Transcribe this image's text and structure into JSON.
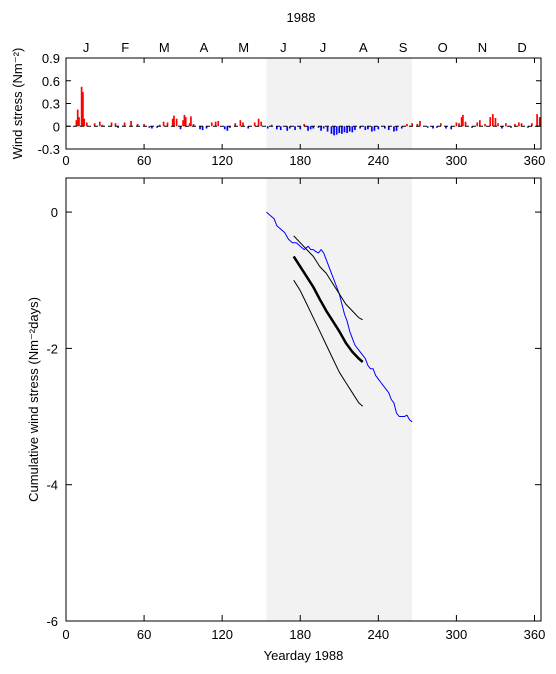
{
  "title": "1988",
  "months": [
    "J",
    "F",
    "M",
    "A",
    "M",
    "J",
    "J",
    "A",
    "S",
    "O",
    "N",
    "D"
  ],
  "chart_data": [
    {
      "type": "bar",
      "ylabel": "Wind stress (Nm⁻²)",
      "xlim": [
        0,
        365
      ],
      "ylim": [
        -0.3,
        0.9
      ],
      "xticks": [
        0,
        60,
        120,
        180,
        240,
        300,
        360
      ],
      "yticks": [
        -0.3,
        0,
        0.3,
        0.6,
        0.9
      ],
      "shaded_range": [
        154,
        266
      ],
      "positive_color": "#ff0000",
      "negative_color": "#0000ff",
      "bars": [
        [
          8,
          0.08
        ],
        [
          9,
          0.22
        ],
        [
          10,
          0.12
        ],
        [
          12,
          0.52
        ],
        [
          13,
          0.45
        ],
        [
          14,
          0.1
        ],
        [
          16,
          0.05
        ],
        [
          22,
          0.04
        ],
        [
          26,
          0.06
        ],
        [
          28,
          0.02
        ],
        [
          35,
          0.05
        ],
        [
          38,
          0.04
        ],
        [
          40,
          -0.02
        ],
        [
          45,
          0.05
        ],
        [
          50,
          0.07
        ],
        [
          55,
          0.03
        ],
        [
          60,
          0.03
        ],
        [
          64,
          -0.02
        ],
        [
          66,
          -0.03
        ],
        [
          70,
          -0.02
        ],
        [
          72,
          0.02
        ],
        [
          75,
          0.06
        ],
        [
          78,
          0.05
        ],
        [
          82,
          0.1
        ],
        [
          83,
          0.14
        ],
        [
          85,
          0.1
        ],
        [
          88,
          -0.04
        ],
        [
          90,
          0.08
        ],
        [
          91,
          0.15
        ],
        [
          92,
          0.12
        ],
        [
          95,
          0.04
        ],
        [
          96,
          0.13
        ],
        [
          98,
          0.03
        ],
        [
          103,
          -0.04
        ],
        [
          105,
          -0.05
        ],
        [
          108,
          -0.03
        ],
        [
          112,
          0.05
        ],
        [
          115,
          0.06
        ],
        [
          117,
          0.07
        ],
        [
          122,
          -0.04
        ],
        [
          124,
          -0.06
        ],
        [
          126,
          -0.02
        ],
        [
          130,
          0.04
        ],
        [
          134,
          0.08
        ],
        [
          136,
          0.05
        ],
        [
          140,
          -0.03
        ],
        [
          145,
          0.05
        ],
        [
          148,
          0.1
        ],
        [
          150,
          0.06
        ],
        [
          155,
          -0.03
        ],
        [
          158,
          0.02
        ],
        [
          162,
          -0.04
        ],
        [
          165,
          -0.05
        ],
        [
          170,
          -0.06
        ],
        [
          172,
          -0.03
        ],
        [
          176,
          -0.05
        ],
        [
          180,
          -0.04
        ],
        [
          183,
          0.03
        ],
        [
          186,
          -0.06
        ],
        [
          188,
          -0.04
        ],
        [
          190,
          -0.03
        ],
        [
          194,
          -0.02
        ],
        [
          196,
          -0.06
        ],
        [
          198,
          -0.03
        ],
        [
          201,
          -0.07
        ],
        [
          204,
          -0.1
        ],
        [
          206,
          -0.12
        ],
        [
          208,
          -0.11
        ],
        [
          210,
          -0.09
        ],
        [
          212,
          -0.1
        ],
        [
          214,
          -0.08
        ],
        [
          216,
          -0.09
        ],
        [
          218,
          -0.07
        ],
        [
          220,
          -0.08
        ],
        [
          222,
          -0.05
        ],
        [
          226,
          -0.03
        ],
        [
          230,
          -0.05
        ],
        [
          232,
          -0.04
        ],
        [
          235,
          -0.07
        ],
        [
          237,
          -0.06
        ],
        [
          240,
          -0.04
        ],
        [
          245,
          -0.03
        ],
        [
          248,
          -0.05
        ],
        [
          252,
          -0.07
        ],
        [
          254,
          -0.06
        ],
        [
          258,
          -0.03
        ],
        [
          262,
          0.03
        ],
        [
          266,
          0.04
        ],
        [
          270,
          0.03
        ],
        [
          272,
          0.07
        ],
        [
          278,
          -0.02
        ],
        [
          282,
          -0.03
        ],
        [
          285,
          -0.02
        ],
        [
          288,
          0.04
        ],
        [
          292,
          -0.03
        ],
        [
          296,
          -0.04
        ],
        [
          300,
          0.05
        ],
        [
          302,
          0.04
        ],
        [
          304,
          0.12
        ],
        [
          305,
          0.15
        ],
        [
          307,
          0.06
        ],
        [
          312,
          -0.02
        ],
        [
          316,
          0.05
        ],
        [
          318,
          0.08
        ],
        [
          322,
          0.03
        ],
        [
          326,
          0.12
        ],
        [
          328,
          0.16
        ],
        [
          330,
          0.11
        ],
        [
          332,
          0.04
        ],
        [
          335,
          -0.03
        ],
        [
          338,
          0.04
        ],
        [
          342,
          -0.02
        ],
        [
          345,
          0.03
        ],
        [
          348,
          0.05
        ],
        [
          350,
          0.04
        ],
        [
          355,
          -0.02
        ],
        [
          358,
          0.04
        ],
        [
          362,
          0.16
        ],
        [
          364,
          0.12
        ]
      ]
    },
    {
      "type": "line",
      "xlabel": "Yearday 1988",
      "ylabel": "Cumulative wind stress (Nm⁻²days)",
      "xlim": [
        0,
        365
      ],
      "ylim": [
        -6,
        0.5
      ],
      "xticks": [
        0,
        60,
        120,
        180,
        240,
        300,
        360
      ],
      "yticks": [
        0,
        -2,
        -4,
        -6
      ],
      "shaded_range": [
        154,
        266
      ],
      "series": [
        {
          "color": "#0000ff",
          "width": 1,
          "points": [
            [
              154,
              0.0
            ],
            [
              157,
              -0.05
            ],
            [
              160,
              -0.1
            ],
            [
              162,
              -0.2
            ],
            [
              165,
              -0.25
            ],
            [
              168,
              -0.3
            ],
            [
              171,
              -0.4
            ],
            [
              174,
              -0.45
            ],
            [
              177,
              -0.45
            ],
            [
              180,
              -0.5
            ],
            [
              183,
              -0.55
            ],
            [
              186,
              -0.5
            ],
            [
              188,
              -0.55
            ],
            [
              190,
              -0.55
            ],
            [
              192,
              -0.58
            ],
            [
              194,
              -0.6
            ],
            [
              196,
              -0.55
            ],
            [
              198,
              -0.6
            ],
            [
              200,
              -0.7
            ],
            [
              202,
              -0.8
            ],
            [
              204,
              -0.9
            ],
            [
              206,
              -1.0
            ],
            [
              208,
              -1.1
            ],
            [
              210,
              -1.2
            ],
            [
              212,
              -1.35
            ],
            [
              214,
              -1.5
            ],
            [
              216,
              -1.6
            ],
            [
              218,
              -1.75
            ],
            [
              220,
              -1.85
            ],
            [
              222,
              -1.95
            ],
            [
              224,
              -2.0
            ],
            [
              226,
              -2.05
            ],
            [
              228,
              -2.1
            ],
            [
              230,
              -2.15
            ],
            [
              232,
              -2.25
            ],
            [
              234,
              -2.3
            ],
            [
              236,
              -2.3
            ],
            [
              238,
              -2.4
            ],
            [
              240,
              -2.45
            ],
            [
              242,
              -2.5
            ],
            [
              244,
              -2.55
            ],
            [
              246,
              -2.6
            ],
            [
              248,
              -2.65
            ],
            [
              250,
              -2.75
            ],
            [
              252,
              -2.8
            ],
            [
              254,
              -2.95
            ],
            [
              256,
              -3.0
            ],
            [
              258,
              -3.0
            ],
            [
              260,
              -3.0
            ],
            [
              262,
              -2.98
            ],
            [
              264,
              -3.05
            ],
            [
              266,
              -3.08
            ]
          ]
        },
        {
          "color": "#000000",
          "width": 1,
          "points": [
            [
              175,
              -0.35
            ],
            [
              180,
              -0.45
            ],
            [
              185,
              -0.55
            ],
            [
              190,
              -0.65
            ],
            [
              195,
              -0.8
            ],
            [
              200,
              -0.9
            ],
            [
              205,
              -1.05
            ],
            [
              210,
              -1.2
            ],
            [
              215,
              -1.35
            ],
            [
              220,
              -1.45
            ],
            [
              225,
              -1.55
            ],
            [
              228,
              -1.58
            ]
          ]
        },
        {
          "color": "#000000",
          "width": 2.5,
          "points": [
            [
              175,
              -0.65
            ],
            [
              180,
              -0.8
            ],
            [
              185,
              -0.95
            ],
            [
              190,
              -1.1
            ],
            [
              195,
              -1.28
            ],
            [
              200,
              -1.45
            ],
            [
              205,
              -1.6
            ],
            [
              210,
              -1.75
            ],
            [
              215,
              -1.92
            ],
            [
              220,
              -2.05
            ],
            [
              225,
              -2.15
            ],
            [
              228,
              -2.2
            ]
          ]
        },
        {
          "color": "#000000",
          "width": 1,
          "points": [
            [
              175,
              -1.0
            ],
            [
              180,
              -1.15
            ],
            [
              185,
              -1.35
            ],
            [
              190,
              -1.55
            ],
            [
              195,
              -1.75
            ],
            [
              200,
              -1.95
            ],
            [
              205,
              -2.15
            ],
            [
              210,
              -2.35
            ],
            [
              215,
              -2.5
            ],
            [
              220,
              -2.65
            ],
            [
              225,
              -2.8
            ],
            [
              228,
              -2.85
            ]
          ]
        }
      ]
    }
  ]
}
